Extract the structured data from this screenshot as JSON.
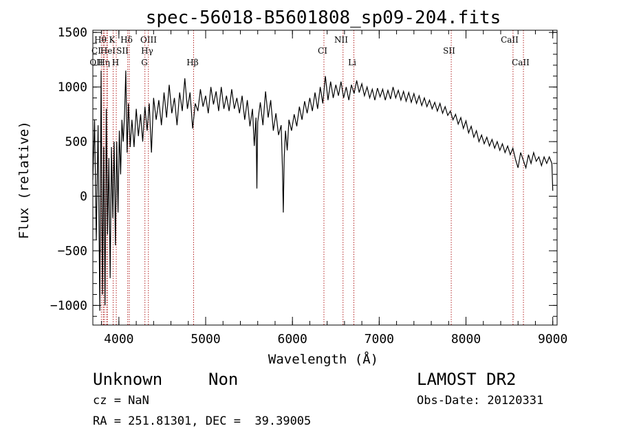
{
  "chart_data": {
    "type": "line",
    "title": "spec-56018-B5601808_sp09-204.fits",
    "xlabel": "Wavelength (Å)",
    "ylabel": "Flux (relative)",
    "xlim": [
      3700,
      9050
    ],
    "ylim": [
      -1180,
      1520
    ],
    "xticks": [
      4000,
      5000,
      6000,
      7000,
      8000,
      9000
    ],
    "yticks": [
      -1000,
      -500,
      0,
      500,
      1000,
      1500
    ],
    "ytick_labels": [
      "−1000",
      "−500",
      "0",
      "500",
      "1000",
      "1500"
    ],
    "series": [
      {
        "color": "#000000",
        "points": [
          [
            3700,
            150
          ],
          [
            3720,
            700
          ],
          [
            3740,
            -400
          ],
          [
            3760,
            650
          ],
          [
            3780,
            -1050
          ],
          [
            3795,
            1150
          ],
          [
            3810,
            -900
          ],
          [
            3825,
            450
          ],
          [
            3840,
            -1000
          ],
          [
            3855,
            800
          ],
          [
            3870,
            -350
          ],
          [
            3885,
            350
          ],
          [
            3900,
            -750
          ],
          [
            3915,
            450
          ],
          [
            3930,
            -200
          ],
          [
            3945,
            500
          ],
          [
            3960,
            -450
          ],
          [
            3975,
            500
          ],
          [
            3990,
            -150
          ],
          [
            4005,
            600
          ],
          [
            4020,
            200
          ],
          [
            4035,
            700
          ],
          [
            4050,
            500
          ],
          [
            4065,
            750
          ],
          [
            4080,
            1150
          ],
          [
            4095,
            400
          ],
          [
            4110,
            850
          ],
          [
            4130,
            450
          ],
          [
            4150,
            700
          ],
          [
            4175,
            450
          ],
          [
            4200,
            800
          ],
          [
            4225,
            550
          ],
          [
            4250,
            750
          ],
          [
            4275,
            500
          ],
          [
            4300,
            820
          ],
          [
            4325,
            600
          ],
          [
            4350,
            850
          ],
          [
            4375,
            400
          ],
          [
            4400,
            900
          ],
          [
            4430,
            700
          ],
          [
            4460,
            880
          ],
          [
            4490,
            650
          ],
          [
            4520,
            950
          ],
          [
            4550,
            720
          ],
          [
            4580,
            1020
          ],
          [
            4610,
            760
          ],
          [
            4640,
            900
          ],
          [
            4670,
            650
          ],
          [
            4700,
            950
          ],
          [
            4730,
            780
          ],
          [
            4760,
            1080
          ],
          [
            4790,
            800
          ],
          [
            4820,
            950
          ],
          [
            4850,
            620
          ],
          [
            4880,
            850
          ],
          [
            4910,
            780
          ],
          [
            4940,
            980
          ],
          [
            4970,
            820
          ],
          [
            5000,
            920
          ],
          [
            5030,
            760
          ],
          [
            5060,
            1000
          ],
          [
            5090,
            840
          ],
          [
            5120,
            960
          ],
          [
            5150,
            780
          ],
          [
            5180,
            1000
          ],
          [
            5210,
            800
          ],
          [
            5240,
            920
          ],
          [
            5270,
            780
          ],
          [
            5300,
            980
          ],
          [
            5330,
            800
          ],
          [
            5360,
            900
          ],
          [
            5390,
            760
          ],
          [
            5420,
            920
          ],
          [
            5450,
            700
          ],
          [
            5480,
            880
          ],
          [
            5510,
            640
          ],
          [
            5540,
            800
          ],
          [
            5560,
            460
          ],
          [
            5580,
            720
          ],
          [
            5590,
            70
          ],
          [
            5600,
            680
          ],
          [
            5630,
            860
          ],
          [
            5660,
            650
          ],
          [
            5690,
            960
          ],
          [
            5720,
            720
          ],
          [
            5750,
            880
          ],
          [
            5780,
            600
          ],
          [
            5810,
            760
          ],
          [
            5840,
            560
          ],
          [
            5870,
            650
          ],
          [
            5885,
            250
          ],
          [
            5895,
            -150
          ],
          [
            5905,
            350
          ],
          [
            5920,
            600
          ],
          [
            5940,
            420
          ],
          [
            5960,
            700
          ],
          [
            5990,
            600
          ],
          [
            6020,
            750
          ],
          [
            6050,
            640
          ],
          [
            6080,
            820
          ],
          [
            6110,
            700
          ],
          [
            6140,
            870
          ],
          [
            6170,
            760
          ],
          [
            6200,
            900
          ],
          [
            6230,
            780
          ],
          [
            6260,
            950
          ],
          [
            6290,
            800
          ],
          [
            6320,
            1000
          ],
          [
            6350,
            850
          ],
          [
            6380,
            1100
          ],
          [
            6410,
            880
          ],
          [
            6440,
            1050
          ],
          [
            6470,
            900
          ],
          [
            6500,
            1020
          ],
          [
            6530,
            920
          ],
          [
            6560,
            1050
          ],
          [
            6590,
            900
          ],
          [
            6620,
            1000
          ],
          [
            6650,
            880
          ],
          [
            6680,
            1020
          ],
          [
            6710,
            940
          ],
          [
            6740,
            1060
          ],
          [
            6770,
            950
          ],
          [
            6800,
            1030
          ],
          [
            6830,
            920
          ],
          [
            6860,
            1000
          ],
          [
            6890,
            900
          ],
          [
            6920,
            980
          ],
          [
            6950,
            880
          ],
          [
            6980,
            990
          ],
          [
            7010,
            910
          ],
          [
            7040,
            980
          ],
          [
            7070,
            880
          ],
          [
            7100,
            970
          ],
          [
            7130,
            890
          ],
          [
            7160,
            1000
          ],
          [
            7190,
            900
          ],
          [
            7220,
            970
          ],
          [
            7250,
            880
          ],
          [
            7280,
            960
          ],
          [
            7310,
            870
          ],
          [
            7340,
            950
          ],
          [
            7370,
            860
          ],
          [
            7400,
            940
          ],
          [
            7430,
            850
          ],
          [
            7460,
            920
          ],
          [
            7490,
            830
          ],
          [
            7520,
            900
          ],
          [
            7550,
            820
          ],
          [
            7580,
            880
          ],
          [
            7610,
            800
          ],
          [
            7640,
            860
          ],
          [
            7670,
            780
          ],
          [
            7700,
            850
          ],
          [
            7730,
            760
          ],
          [
            7760,
            820
          ],
          [
            7790,
            740
          ],
          [
            7820,
            780
          ],
          [
            7850,
            700
          ],
          [
            7880,
            750
          ],
          [
            7910,
            660
          ],
          [
            7940,
            720
          ],
          [
            7970,
            620
          ],
          [
            8000,
            690
          ],
          [
            8030,
            580
          ],
          [
            8060,
            640
          ],
          [
            8090,
            540
          ],
          [
            8120,
            600
          ],
          [
            8150,
            500
          ],
          [
            8180,
            560
          ],
          [
            8210,
            480
          ],
          [
            8240,
            540
          ],
          [
            8270,
            460
          ],
          [
            8300,
            520
          ],
          [
            8330,
            440
          ],
          [
            8360,
            500
          ],
          [
            8390,
            420
          ],
          [
            8420,
            480
          ],
          [
            8450,
            400
          ],
          [
            8480,
            460
          ],
          [
            8510,
            380
          ],
          [
            8540,
            440
          ],
          [
            8570,
            340
          ],
          [
            8600,
            260
          ],
          [
            8630,
            400
          ],
          [
            8660,
            330
          ],
          [
            8690,
            260
          ],
          [
            8720,
            380
          ],
          [
            8750,
            300
          ],
          [
            8780,
            400
          ],
          [
            8810,
            320
          ],
          [
            8840,
            360
          ],
          [
            8870,
            280
          ],
          [
            8900,
            360
          ],
          [
            8930,
            300
          ],
          [
            8960,
            360
          ],
          [
            8990,
            300
          ],
          [
            9000,
            50
          ]
        ]
      }
    ],
    "line_markers": [
      {
        "wl": 3798,
        "row": 1,
        "label": "Hθ"
      },
      {
        "wl": 3820,
        "row": 2,
        "label": "CI"
      },
      {
        "wl": 3822,
        "row": 3,
        "label": "OII"
      },
      {
        "wl": 3835,
        "row": 4,
        "label": "Hη"
      },
      {
        "wl": 3860,
        "row": 5,
        "label": "K"
      },
      {
        "wl": 3868,
        "row": 6,
        "label": "HeI"
      },
      {
        "wl": 3934,
        "row": 7,
        "label": "SII"
      },
      {
        "wl": 3970,
        "row": 8,
        "label": "H"
      },
      {
        "wl": 4102,
        "row": 9,
        "label": "Hδ"
      },
      {
        "wl": 4120,
        "row": 10,
        "label": "OIII"
      },
      {
        "wl": 4300,
        "row": 11,
        "label": "Hγ"
      },
      {
        "wl": 4340,
        "row": 12,
        "label": "G"
      },
      {
        "wl": 4861,
        "row": 13,
        "label": "Hβ"
      },
      {
        "wl": 6363,
        "row": 14,
        "label": "CI"
      },
      {
        "wl": 6583,
        "row": 15,
        "label": "NII"
      },
      {
        "wl": 6708,
        "row": 16,
        "label": "Li"
      },
      {
        "wl": 7830,
        "row": 17,
        "label": "SII"
      },
      {
        "wl": 8542,
        "row": 18,
        "label": "CaII"
      },
      {
        "wl": 8662,
        "row": 19,
        "label": "CaII"
      }
    ]
  },
  "info": {
    "class": "Unknown",
    "subclass": "Non",
    "survey": "LAMOST DR2",
    "cz": "cz = NaN",
    "obs_date": "Obs-Date: 20120331",
    "radec": "RA = 251.81301, DEC =  39.39005"
  }
}
